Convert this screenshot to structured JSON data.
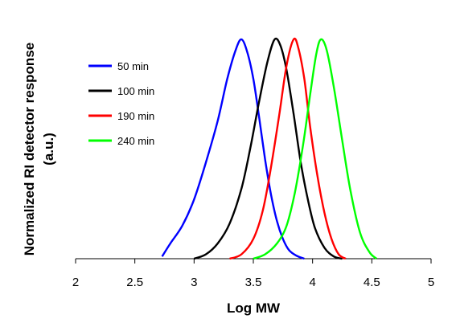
{
  "chart_data": {
    "type": "line",
    "title": "",
    "xlabel": "Log MW",
    "ylabel": "Normalized RI detector response (a.u.)",
    "ylabel_lines": [
      "Normalized RI detector response",
      "(a.u.)"
    ],
    "xlim": [
      2,
      5
    ],
    "ylim": [
      0,
      1
    ],
    "xticks": [
      2,
      2.5,
      3,
      3.5,
      4,
      4.5,
      5
    ],
    "xtick_labels": [
      "2",
      "2.5",
      "3",
      "3.5",
      "4",
      "4.5",
      "5"
    ],
    "grid": false,
    "legend_position": "top-left",
    "series": [
      {
        "name": "50 min",
        "color": "#0000ff",
        "x": [
          2.73,
          2.8,
          2.9,
          3.0,
          3.1,
          3.2,
          3.28,
          3.35,
          3.4,
          3.45,
          3.5,
          3.55,
          3.6,
          3.65,
          3.7,
          3.75,
          3.8,
          3.86,
          3.93
        ],
        "y": [
          0.01,
          0.07,
          0.15,
          0.27,
          0.44,
          0.63,
          0.82,
          0.95,
          1.0,
          0.94,
          0.82,
          0.64,
          0.45,
          0.29,
          0.17,
          0.09,
          0.04,
          0.015,
          0.0
        ]
      },
      {
        "name": "100 min",
        "color": "#000000",
        "x": [
          3.0,
          3.1,
          3.2,
          3.3,
          3.4,
          3.48,
          3.55,
          3.62,
          3.68,
          3.73,
          3.78,
          3.84,
          3.9,
          3.96,
          4.02,
          4.1,
          4.18,
          4.25
        ],
        "y": [
          0.0,
          0.02,
          0.07,
          0.16,
          0.32,
          0.52,
          0.72,
          0.9,
          1.0,
          0.97,
          0.86,
          0.66,
          0.44,
          0.27,
          0.14,
          0.05,
          0.01,
          0.0
        ]
      },
      {
        "name": "190 min",
        "color": "#ff0000",
        "x": [
          3.3,
          3.4,
          3.5,
          3.58,
          3.65,
          3.72,
          3.78,
          3.84,
          3.88,
          3.93,
          3.98,
          4.04,
          4.1,
          4.16,
          4.22,
          4.28
        ],
        "y": [
          0.0,
          0.02,
          0.09,
          0.22,
          0.42,
          0.66,
          0.88,
          1.0,
          0.96,
          0.82,
          0.6,
          0.38,
          0.21,
          0.09,
          0.02,
          0.0
        ]
      },
      {
        "name": "240 min",
        "color": "#00ff00",
        "x": [
          3.5,
          3.6,
          3.7,
          3.78,
          3.85,
          3.92,
          3.98,
          4.03,
          4.07,
          4.12,
          4.18,
          4.25,
          4.32,
          4.4,
          4.48,
          4.54
        ],
        "y": [
          0.0,
          0.02,
          0.07,
          0.15,
          0.3,
          0.52,
          0.75,
          0.93,
          1.0,
          0.95,
          0.78,
          0.54,
          0.31,
          0.12,
          0.03,
          0.0
        ]
      }
    ]
  }
}
